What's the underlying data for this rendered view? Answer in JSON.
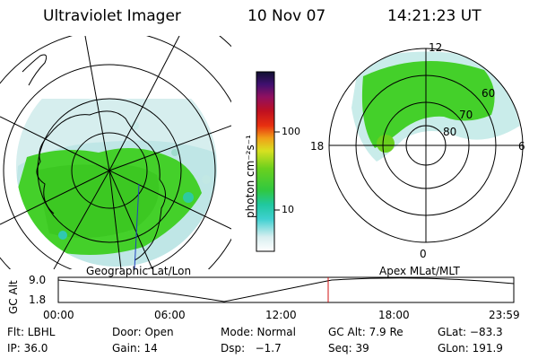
{
  "header": {
    "instrument": "Ultraviolet Imager",
    "date": "10 Nov 07",
    "time": "14:21:23 UT"
  },
  "left_map": {
    "caption": "Geographic Lat/Lon"
  },
  "right_map": {
    "caption": "Apex MLat/MLT",
    "mlt_labels": {
      "top": "12",
      "left": "18",
      "right": "6",
      "bottom": "0"
    },
    "lat_labels": [
      "60",
      "70",
      "80"
    ]
  },
  "colorbar": {
    "unit_label": "photon cm⁻²s⁻¹",
    "ticks": [
      "100",
      "10"
    ]
  },
  "alt_plot": {
    "ylabel": "GC Alt",
    "yticks": [
      "9.0",
      "1.8"
    ],
    "xticks": [
      "00:00",
      "06:00",
      "12:00",
      "18:00",
      "23:59"
    ],
    "marker_time": "14:21"
  },
  "footer": {
    "row1": [
      {
        "key": "flt",
        "text": "Flt: LBHL"
      },
      {
        "key": "door",
        "text": "Door: Open"
      },
      {
        "key": "mode",
        "text": "Mode: Normal"
      },
      {
        "key": "gcalt",
        "text": "GC Alt: 7.9 Re"
      },
      {
        "key": "glat",
        "text": "GLat: −83.3"
      }
    ],
    "row2": [
      {
        "key": "ip",
        "text": "IP: 36.0"
      },
      {
        "key": "gain",
        "text": "Gain: 14"
      },
      {
        "key": "dsp",
        "text": "Dsp:   −1.7"
      },
      {
        "key": "seq",
        "text": "Seq: 39"
      },
      {
        "key": "glon",
        "text": "GLon: 191.9"
      }
    ]
  },
  "colors": {
    "aurora_green": "#44d02a",
    "aurora_light": "#b8e8e0",
    "marker_red": "#d01010"
  }
}
